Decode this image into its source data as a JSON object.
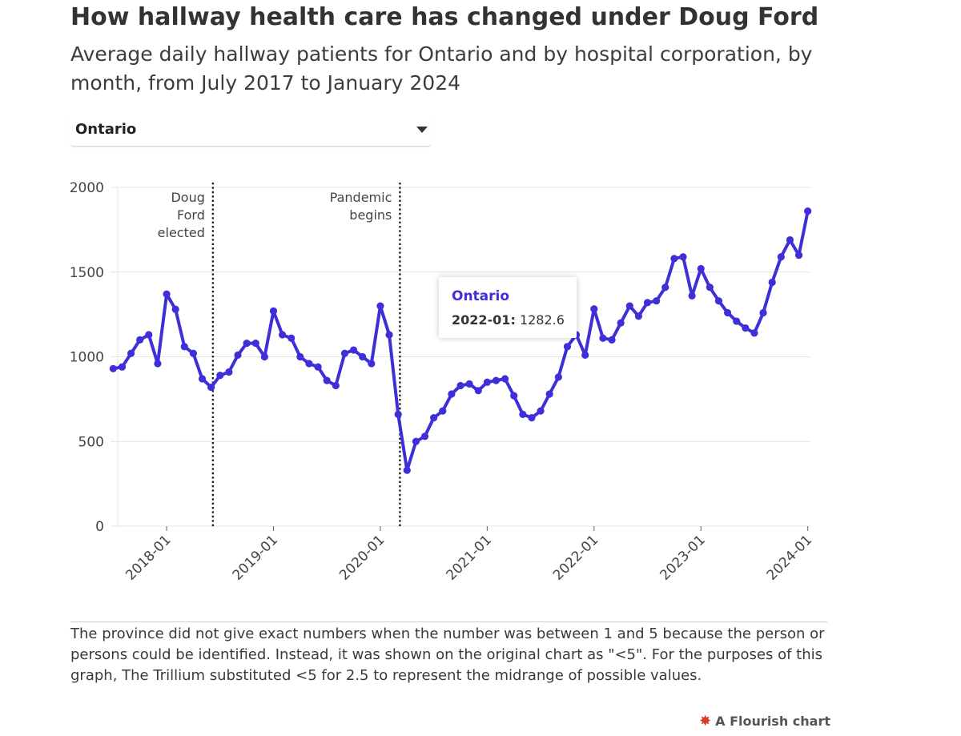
{
  "header": {
    "title": "How hallway health care has changed under Doug Ford",
    "subtitle": "Average daily hallway patients for Ontario and by hospital corporation, by month, from July 2017 to January 2024"
  },
  "selector": {
    "selected": "Ontario"
  },
  "tooltip": {
    "series": "Ontario",
    "date_label": "2022-01:",
    "value": "1282.6"
  },
  "footnote": "The province did not give exact numbers when the number was between 1 and 5 because the person or persons could be identified. Instead, it was shown on the original chart as \"<5\". For the purposes of this graph, The Trillium substituted <5 for 2.5 to represent the midrange of possible values.",
  "credit": {
    "text": "A Flourish chart",
    "icon": "flourish-star-icon"
  },
  "colors": {
    "line": "#3f2fd8",
    "grid": "#e4e4e4",
    "axis_text": "#444444"
  },
  "chart_data": {
    "type": "line",
    "title": "How hallway health care has changed under Doug Ford",
    "x_start": "2017-07",
    "x_end": "2024-01",
    "xlim_months": [
      -0.3,
      78.3
    ],
    "ylim": [
      0,
      2000
    ],
    "y_ticks": [
      0,
      500,
      1000,
      1500,
      2000
    ],
    "x_ticks": [
      {
        "label": "2018-01",
        "month": 6
      },
      {
        "label": "2019-01",
        "month": 18
      },
      {
        "label": "2020-01",
        "month": 30
      },
      {
        "label": "2021-01",
        "month": 42
      },
      {
        "label": "2022-01",
        "month": 54
      },
      {
        "label": "2023-01",
        "month": 66
      },
      {
        "label": "2024-01",
        "month": 78
      }
    ],
    "annotations": [
      {
        "month": 11.2,
        "lines": [
          "Doug",
          "Ford",
          "elected"
        ]
      },
      {
        "month": 32.2,
        "lines": [
          "Pandemic",
          "begins"
        ]
      }
    ],
    "series": [
      {
        "name": "Ontario",
        "values": [
          930,
          940,
          1020,
          1100,
          1130,
          960,
          1370,
          1280,
          1060,
          1020,
          870,
          820,
          890,
          910,
          1010,
          1080,
          1080,
          1000,
          1270,
          1130,
          1110,
          1000,
          960,
          940,
          860,
          830,
          1020,
          1040,
          1000,
          960,
          1300,
          1130,
          660,
          330,
          500,
          530,
          640,
          680,
          780,
          830,
          840,
          800,
          850,
          860,
          870,
          770,
          660,
          640,
          680,
          780,
          880,
          1060,
          1130,
          1010,
          1282.6,
          1110,
          1100,
          1200,
          1300,
          1240,
          1320,
          1330,
          1410,
          1580,
          1590,
          1360,
          1520,
          1410,
          1330,
          1260,
          1210,
          1170,
          1140,
          1260,
          1440,
          1590,
          1690,
          1600,
          1860
        ]
      }
    ]
  }
}
